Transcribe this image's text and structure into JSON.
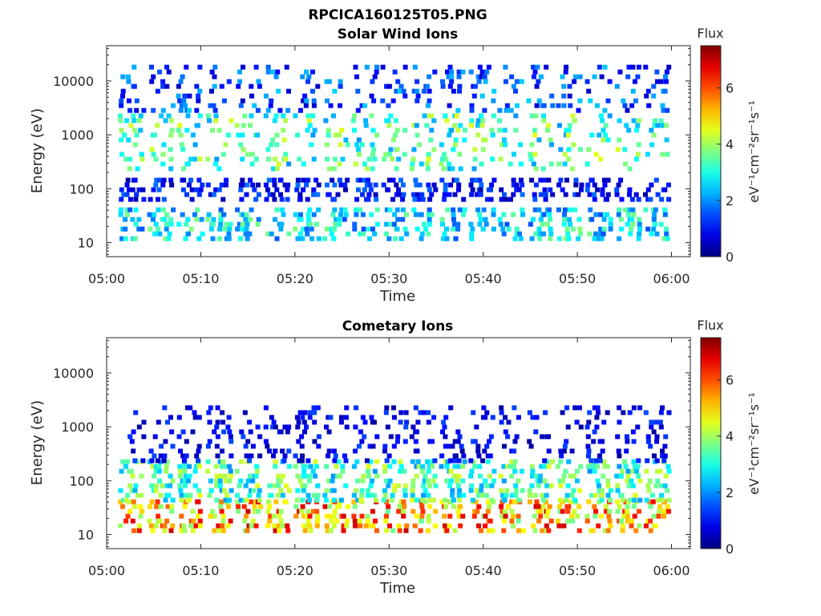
{
  "figure": {
    "title": "RPCICA160125T05.PNG"
  },
  "chart_data": [
    {
      "type": "heatmap",
      "title": "Solar Wind Ions",
      "xlabel": "Time",
      "ylabel": "Energy (eV)",
      "x_ticks": [
        "05:00",
        "05:10",
        "05:20",
        "05:30",
        "05:40",
        "05:50",
        "06:00"
      ],
      "x_range_minutes": [
        0,
        62
      ],
      "y_scale": "log",
      "y_ticks": [
        "10",
        "100",
        "1000",
        "10000"
      ],
      "y_range": [
        5.5,
        45000
      ],
      "colorbar": {
        "label": "Flux",
        "units": "eV⁻¹cm⁻²sr⁻¹s⁻¹",
        "ticks": [
          "0",
          "2",
          "4",
          "6"
        ],
        "range": [
          0,
          7.5
        ]
      },
      "pattern": {
        "cycle_minutes": 3.1,
        "first_burst_minutes": 2.7,
        "bands": [
          {
            "energy_range_eV": [
              12,
              45
            ],
            "flux_range": [
              1.5,
              3.8
            ]
          },
          {
            "energy_range_eV": [
              60,
              160
            ],
            "flux_range": [
              0.3,
              1.8
            ]
          },
          {
            "energy_range_eV": [
              250,
              2500
            ],
            "flux_range": [
              2.0,
              4.5
            ]
          },
          {
            "energy_range_eV": [
              3000,
              20000
            ],
            "flux_range": [
              0.5,
              2.5
            ]
          }
        ]
      }
    },
    {
      "type": "heatmap",
      "title": "Cometary Ions",
      "xlabel": "Time",
      "ylabel": "Energy (eV)",
      "x_ticks": [
        "05:00",
        "05:10",
        "05:20",
        "05:30",
        "05:40",
        "05:50",
        "06:00"
      ],
      "x_range_minutes": [
        0,
        62
      ],
      "y_scale": "log",
      "y_ticks": [
        "10",
        "100",
        "1000",
        "10000"
      ],
      "y_range": [
        5.5,
        45000
      ],
      "colorbar": {
        "label": "Flux",
        "units": "eV⁻¹cm⁻²sr⁻¹s⁻¹",
        "ticks": [
          "0",
          "2",
          "4",
          "6"
        ],
        "range": [
          0,
          7.5
        ]
      },
      "pattern": {
        "cycle_minutes": 3.1,
        "first_burst_minutes": 2.7,
        "bands": [
          {
            "energy_range_eV": [
              12,
              45
            ],
            "flux_range": [
              3.5,
              7.0
            ]
          },
          {
            "energy_range_eV": [
              45,
              250
            ],
            "flux_range": [
              2.0,
              4.5
            ]
          },
          {
            "energy_range_eV": [
              250,
              2500
            ],
            "flux_range": [
              0.2,
              1.5
            ]
          }
        ]
      }
    }
  ]
}
